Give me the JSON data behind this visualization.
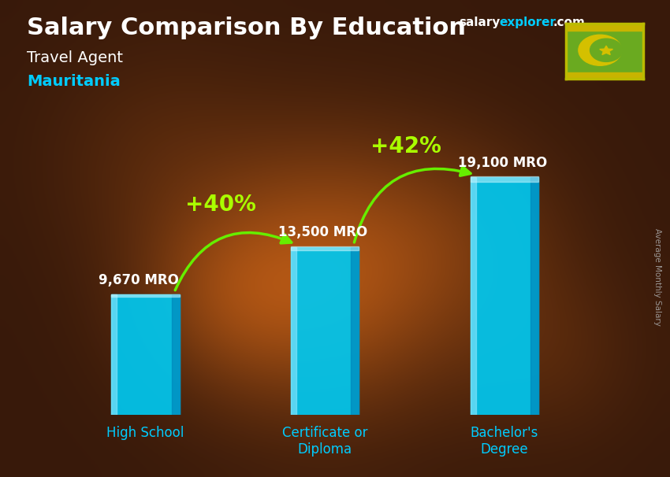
{
  "title_main": "Salary Comparison By Education",
  "subtitle1": "Travel Agent",
  "subtitle2": "Mauritania",
  "ylabel": "Average Monthly Salary",
  "categories": [
    "High School",
    "Certificate or\nDiploma",
    "Bachelor's\nDegree"
  ],
  "values": [
    9670,
    13500,
    19100
  ],
  "value_labels": [
    "9,670 MRO",
    "13,500 MRO",
    "19,100 MRO"
  ],
  "bar_face_color": "#00c8f0",
  "bar_edge_color": "#ffffff",
  "pct_labels": [
    "+40%",
    "+42%"
  ],
  "pct_color": "#aaff00",
  "arrow_color": "#66ee00",
  "background_color": "#3a1a08",
  "title_color": "#ffffff",
  "subtitle1_color": "#ffffff",
  "subtitle2_color": "#00ccff",
  "label_color": "#00ccff",
  "value_color": "#ffffff",
  "brand_salary_color": "#ffffff",
  "brand_explorer_color": "#00ccff",
  "brand_com_color": "#ffffff",
  "watermark_color": "#aaaaaa",
  "flag_bg": "#6aaa20",
  "flag_symbol_color": "#d4c000",
  "ylim": [
    0,
    23000
  ],
  "bar_width": 0.38,
  "title_fontsize": 22,
  "subtitle_fontsize": 14,
  "label_fontsize": 12,
  "value_fontsize": 12,
  "pct_fontsize": 20
}
